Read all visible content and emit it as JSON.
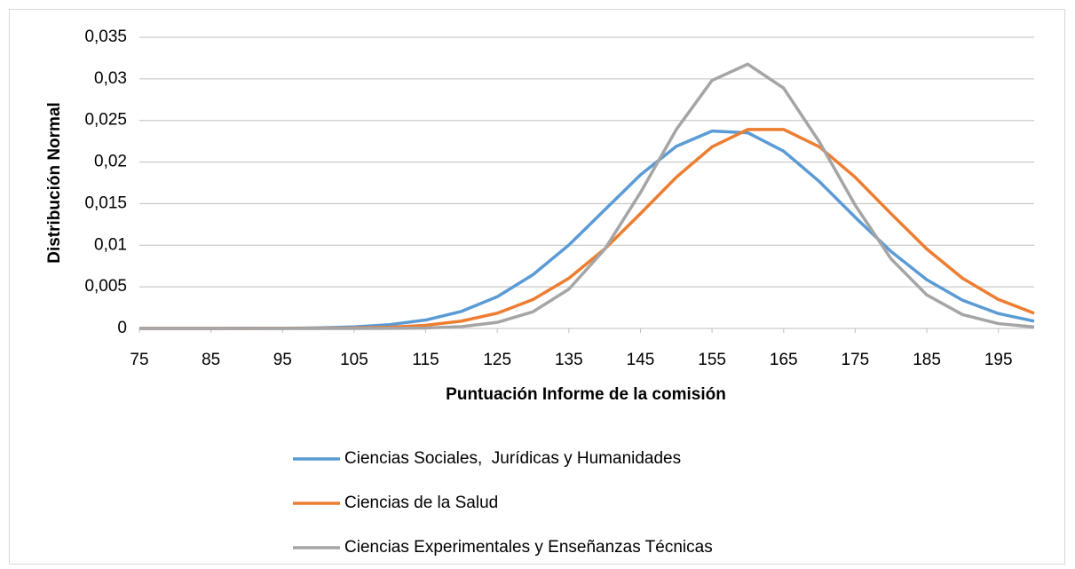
{
  "chart_data": {
    "type": "line",
    "xlabel": "Puntuación Informe de la comisión",
    "ylabel": "Distribución Normal",
    "x": [
      75,
      80,
      85,
      90,
      95,
      100,
      105,
      110,
      115,
      120,
      125,
      130,
      135,
      140,
      145,
      150,
      155,
      160,
      165,
      170,
      175,
      180,
      185,
      190,
      195,
      200
    ],
    "xlim": [
      75,
      200
    ],
    "xticks": [
      75,
      85,
      95,
      105,
      115,
      125,
      135,
      145,
      155,
      165,
      175,
      185,
      195
    ],
    "ylim": [
      0,
      0.035
    ],
    "yticks": [
      0,
      {
        "value": 0.005,
        "label": "0,005"
      },
      {
        "value": 0.01,
        "label": "0,01"
      },
      {
        "value": 0.015,
        "label": "0,015"
      },
      {
        "value": 0.02,
        "label": "0,02"
      },
      {
        "value": 0.025,
        "label": "0,025"
      },
      {
        "value": 0.03,
        "label": "0,03"
      },
      {
        "value": 0.035,
        "label": "0,035"
      }
    ],
    "grid": true,
    "legend": "bottom",
    "series": [
      {
        "name": "Ciencias Sociales,  Jurídicas y Humanidades",
        "color": "#5b9bd5",
        "values": [
          0,
          0,
          0,
          1e-05,
          2e-05,
          7e-05,
          0.00019,
          0.00046,
          0.00101,
          0.00205,
          0.00381,
          0.00647,
          0.01003,
          0.01424,
          0.01846,
          0.02189,
          0.02373,
          0.02352,
          0.02131,
          0.01765,
          0.01336,
          0.00926,
          0.00586,
          0.00339,
          0.00179,
          0.00087
        ]
      },
      {
        "name": "Ciencias de la Salud",
        "color": "#ed7d31",
        "values": [
          0,
          0,
          0,
          0,
          1e-05,
          2e-05,
          6e-05,
          0.00015,
          0.00038,
          0.00088,
          0.00183,
          0.00348,
          0.00603,
          0.00955,
          0.0138,
          0.01817,
          0.02183,
          0.02392,
          0.02392,
          0.02183,
          0.01817,
          0.0138,
          0.00955,
          0.00603,
          0.00348,
          0.00183
        ]
      },
      {
        "name": "Ciencias Experimentales y Enseñanzas Técnicas",
        "color": "#a5a5a5",
        "values": [
          0,
          0,
          0,
          0,
          0,
          0,
          0,
          1e-05,
          6e-05,
          0.00022,
          0.00073,
          0.00201,
          0.00472,
          0.00951,
          0.01633,
          0.0239,
          0.02982,
          0.03177,
          0.02889,
          0.02241,
          0.01482,
          0.00837,
          0.00403,
          0.00166,
          0.00058,
          0.00017
        ]
      }
    ]
  }
}
